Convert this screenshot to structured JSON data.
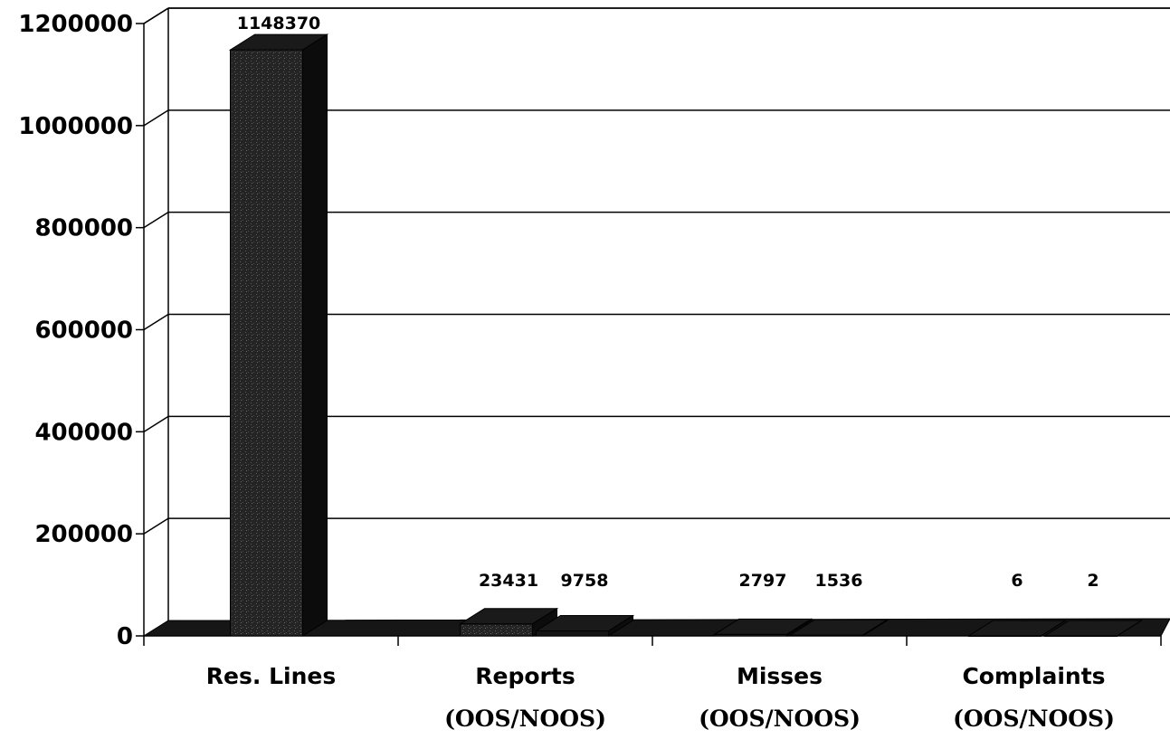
{
  "chart_data": {
    "type": "bar",
    "title": "",
    "xlabel": "",
    "ylabel": "",
    "ylim": [
      0,
      1200000
    ],
    "yticks": [
      0,
      200000,
      400000,
      600000,
      800000,
      1000000,
      1200000
    ],
    "ytick_labels": [
      "0",
      "200000",
      "400000",
      "600000",
      "800000",
      "1000000",
      "1200000"
    ],
    "grid": true,
    "legend": "none",
    "categories": [
      {
        "label": "Res. Lines",
        "sub": ""
      },
      {
        "label": "Reports",
        "sub": "(OOS/NOOS)"
      },
      {
        "label": "Misses",
        "sub": "(OOS/NOOS)"
      },
      {
        "label": "Complaints",
        "sub": "(OOS/NOOS)"
      }
    ],
    "series": [
      {
        "values": [
          1148370,
          23431,
          2797,
          6
        ],
        "labels": [
          "1148370",
          "23431",
          "2797",
          "6"
        ],
        "color": "#1c1c1c"
      },
      {
        "values": [
          null,
          9758,
          1536,
          2
        ],
        "labels": [
          "",
          "9758",
          "1536",
          "2"
        ],
        "color": "#141414"
      }
    ]
  }
}
